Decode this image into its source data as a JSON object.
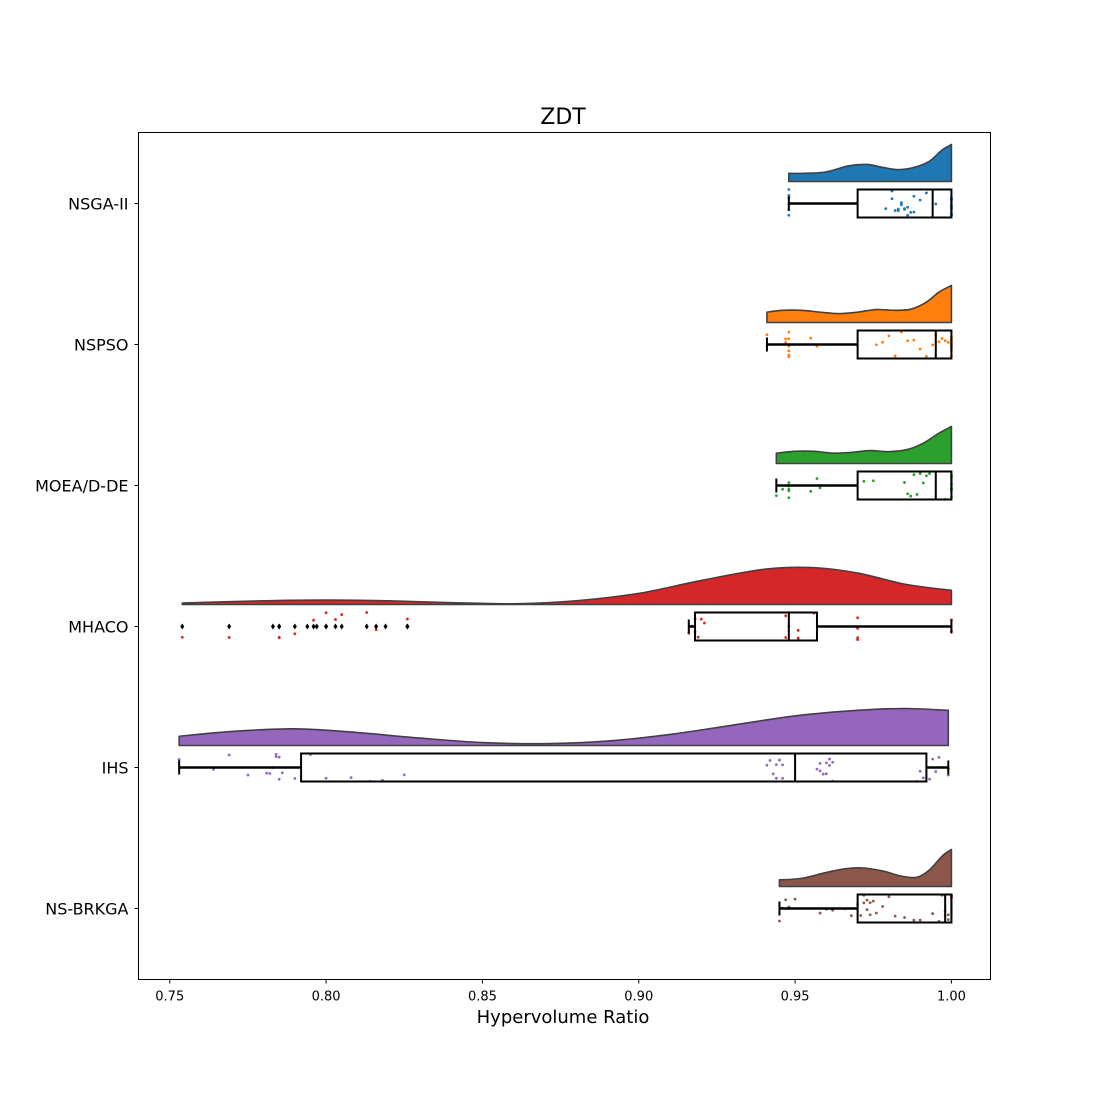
{
  "chart_data": {
    "type": "raincloud",
    "title": "ZDT",
    "xlabel": "Hypervolume Ratio",
    "ylabel": "",
    "xlim": [
      0.74,
      1.0125
    ],
    "xticks": [
      0.75,
      0.8,
      0.85,
      0.9,
      0.95,
      1.0
    ],
    "xtick_labels": [
      "0.75",
      "0.80",
      "0.85",
      "0.90",
      "0.95",
      "1.00"
    ],
    "orientation": "horizontal",
    "grid": false,
    "series": [
      {
        "name": "NSGA-II",
        "color": "#1f77b4",
        "box": {
          "whisker_low": 0.948,
          "q1": 0.97,
          "median": 0.994,
          "q3": 1.0,
          "whisker_high": 1.0
        },
        "density": [
          [
            0.948,
            0.22
          ],
          [
            0.953,
            0.22
          ],
          [
            0.96,
            0.26
          ],
          [
            0.967,
            0.42
          ],
          [
            0.973,
            0.46
          ],
          [
            0.978,
            0.38
          ],
          [
            0.983,
            0.32
          ],
          [
            0.988,
            0.38
          ],
          [
            0.993,
            0.55
          ],
          [
            0.997,
            0.85
          ],
          [
            1.0,
            1.0
          ]
        ],
        "points": [
          0.948,
          0.948,
          0.948,
          0.948,
          0.948,
          0.948,
          0.981,
          0.982,
          0.983,
          0.984,
          0.985,
          0.986,
          0.987,
          0.988,
          0.99,
          0.985,
          0.983,
          0.981,
          0.979,
          0.984,
          0.986,
          0.988,
          0.992,
          0.995,
          1.0,
          1.0,
          1.0,
          1.0,
          1.0,
          1.0,
          1.0,
          1.0,
          1.0,
          1.0
        ],
        "outliers": []
      },
      {
        "name": "NSPSO",
        "color": "#ff7f0e",
        "box": {
          "whisker_low": 0.941,
          "q1": 0.97,
          "median": 0.995,
          "q3": 1.0,
          "whisker_high": 1.0
        },
        "density": [
          [
            0.941,
            0.28
          ],
          [
            0.946,
            0.33
          ],
          [
            0.952,
            0.33
          ],
          [
            0.958,
            0.28
          ],
          [
            0.964,
            0.24
          ],
          [
            0.97,
            0.28
          ],
          [
            0.976,
            0.35
          ],
          [
            0.982,
            0.33
          ],
          [
            0.987,
            0.36
          ],
          [
            0.992,
            0.55
          ],
          [
            0.996,
            0.82
          ],
          [
            1.0,
            1.0
          ]
        ],
        "points": [
          0.941,
          0.947,
          0.947,
          0.948,
          0.948,
          0.948,
          0.948,
          0.948,
          0.948,
          0.955,
          0.957,
          0.976,
          0.978,
          0.98,
          0.982,
          0.984,
          0.986,
          0.988,
          0.99,
          0.992,
          0.994,
          0.995,
          0.996,
          0.997,
          0.998,
          0.999,
          1.0,
          1.0,
          1.0,
          1.0,
          1.0,
          1.0
        ],
        "outliers": []
      },
      {
        "name": "MOEA/D-DE",
        "color": "#2ca02c",
        "box": {
          "whisker_low": 0.944,
          "q1": 0.97,
          "median": 0.995,
          "q3": 1.0,
          "whisker_high": 1.0
        },
        "density": [
          [
            0.944,
            0.28
          ],
          [
            0.95,
            0.33
          ],
          [
            0.956,
            0.33
          ],
          [
            0.962,
            0.28
          ],
          [
            0.968,
            0.3
          ],
          [
            0.974,
            0.35
          ],
          [
            0.98,
            0.32
          ],
          [
            0.986,
            0.38
          ],
          [
            0.991,
            0.55
          ],
          [
            0.996,
            0.82
          ],
          [
            1.0,
            1.0
          ]
        ],
        "points": [
          0.944,
          0.946,
          0.948,
          0.948,
          0.948,
          0.948,
          0.948,
          0.948,
          0.955,
          0.957,
          0.958,
          0.972,
          0.975,
          0.985,
          0.986,
          0.987,
          0.988,
          0.989,
          0.99,
          0.991,
          0.992,
          0.993,
          0.998,
          1.0,
          1.0,
          1.0,
          1.0,
          1.0,
          1.0,
          1.0
        ],
        "outliers": []
      },
      {
        "name": "MHACO",
        "color": "#d62728",
        "box": {
          "whisker_low": 0.916,
          "q1": 0.918,
          "median": 0.948,
          "q3": 0.957,
          "whisker_high": 1.0
        },
        "density": [
          [
            0.754,
            0.04
          ],
          [
            0.78,
            0.1
          ],
          [
            0.8,
            0.12
          ],
          [
            0.82,
            0.1
          ],
          [
            0.84,
            0.05
          ],
          [
            0.86,
            0.02
          ],
          [
            0.88,
            0.1
          ],
          [
            0.9,
            0.3
          ],
          [
            0.92,
            0.65
          ],
          [
            0.94,
            0.95
          ],
          [
            0.955,
            1.0
          ],
          [
            0.97,
            0.85
          ],
          [
            0.985,
            0.55
          ],
          [
            1.0,
            0.38
          ]
        ],
        "points": [
          0.754,
          0.769,
          0.785,
          0.785,
          0.79,
          0.796,
          0.8,
          0.803,
          0.805,
          0.813,
          0.816,
          0.826,
          0.916,
          0.917,
          0.918,
          0.918,
          0.919,
          0.92,
          0.921,
          0.947,
          0.947,
          0.948,
          0.948,
          0.951,
          0.951,
          0.951,
          0.956,
          0.97,
          0.97,
          0.97,
          0.97,
          1.0,
          1.0
        ],
        "outliers": [
          0.754,
          0.769,
          0.783,
          0.785,
          0.785,
          0.79,
          0.794,
          0.796,
          0.797,
          0.8,
          0.8,
          0.803,
          0.805,
          0.813,
          0.816,
          0.819,
          0.826,
          0.826
        ]
      },
      {
        "name": "IHS",
        "color": "#9467bd",
        "box": {
          "whisker_low": 0.753,
          "q1": 0.792,
          "median": 0.95,
          "q3": 0.992,
          "whisker_high": 0.999
        },
        "density": [
          [
            0.753,
            0.25
          ],
          [
            0.77,
            0.38
          ],
          [
            0.79,
            0.45
          ],
          [
            0.81,
            0.35
          ],
          [
            0.83,
            0.2
          ],
          [
            0.85,
            0.08
          ],
          [
            0.87,
            0.05
          ],
          [
            0.89,
            0.12
          ],
          [
            0.91,
            0.3
          ],
          [
            0.93,
            0.55
          ],
          [
            0.95,
            0.8
          ],
          [
            0.97,
            0.95
          ],
          [
            0.985,
            1.0
          ],
          [
            0.999,
            0.95
          ]
        ],
        "points": [
          0.753,
          0.753,
          0.764,
          0.769,
          0.775,
          0.781,
          0.782,
          0.783,
          0.784,
          0.784,
          0.785,
          0.785,
          0.786,
          0.79,
          0.795,
          0.8,
          0.808,
          0.814,
          0.818,
          0.825,
          0.941,
          0.942,
          0.943,
          0.944,
          0.944,
          0.945,
          0.946,
          0.946,
          0.957,
          0.958,
          0.958,
          0.959,
          0.96,
          0.96,
          0.961,
          0.961,
          0.962,
          0.962,
          0.989,
          0.99,
          0.991,
          0.993,
          0.994,
          0.995,
          0.996,
          0.997,
          0.999,
          0.999
        ],
        "outliers": []
      },
      {
        "name": "NS-BRKGA",
        "color": "#8c564b",
        "box": {
          "whisker_low": 0.945,
          "q1": 0.97,
          "median": 0.998,
          "q3": 1.0,
          "whisker_high": 1.0
        },
        "density": [
          [
            0.945,
            0.18
          ],
          [
            0.952,
            0.22
          ],
          [
            0.96,
            0.38
          ],
          [
            0.966,
            0.48
          ],
          [
            0.972,
            0.5
          ],
          [
            0.978,
            0.42
          ],
          [
            0.984,
            0.28
          ],
          [
            0.989,
            0.25
          ],
          [
            0.993,
            0.45
          ],
          [
            0.997,
            0.82
          ],
          [
            1.0,
            1.0
          ]
        ],
        "points": [
          0.945,
          0.946,
          0.947,
          0.948,
          0.95,
          0.958,
          0.96,
          0.962,
          0.966,
          0.968,
          0.97,
          0.971,
          0.972,
          0.972,
          0.973,
          0.973,
          0.974,
          0.974,
          0.975,
          0.976,
          0.978,
          0.98,
          0.982,
          0.985,
          0.988,
          0.99,
          0.994,
          0.996,
          0.997,
          0.998,
          0.998,
          0.999,
          0.999,
          1.0,
          1.0,
          1.0,
          1.0,
          1.0,
          1.0
        ],
        "outliers": []
      }
    ]
  }
}
